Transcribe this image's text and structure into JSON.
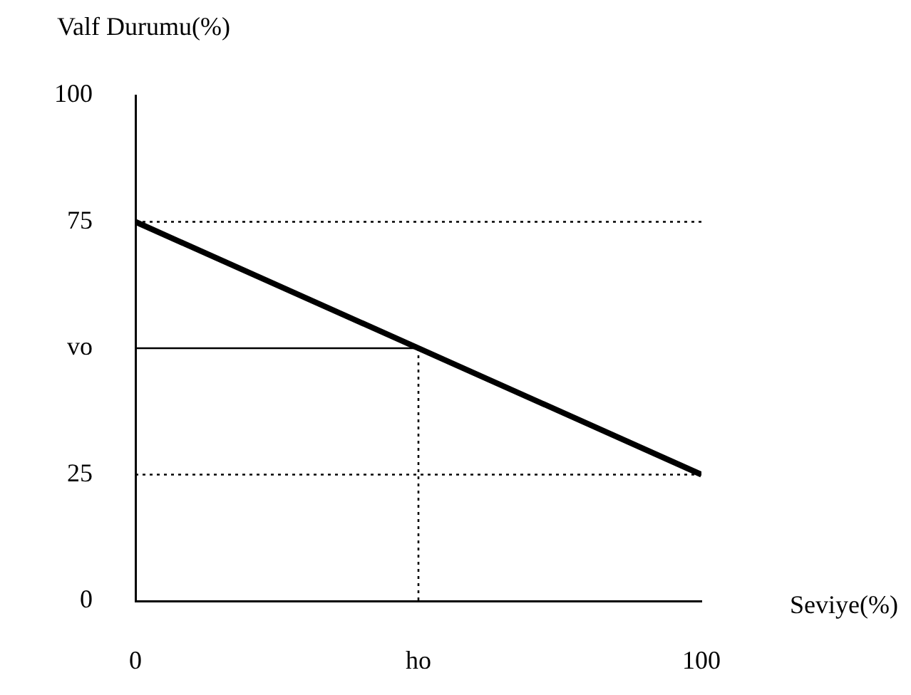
{
  "chart_data": {
    "type": "line",
    "xlabel": "Seviye(%)",
    "ylabel": "Valf Durumu(%)",
    "xlim": [
      0,
      100
    ],
    "ylim": [
      0,
      100
    ],
    "xticks": [
      0,
      {
        "value": 50,
        "label": "ho"
      },
      100
    ],
    "yticks": [
      0,
      25,
      {
        "value": 50,
        "label": "vo"
      },
      75,
      100
    ],
    "grid": false,
    "legend": false,
    "marker": "none",
    "line_style": "solid",
    "series": [
      {
        "color": "#000000",
        "x": [
          0,
          100
        ],
        "values": [
          75,
          25
        ]
      },
      {
        "color": "#000000",
        "x": [
          0,
          50
        ],
        "values": [
          50,
          50
        ],
        "line_style": "solid"
      },
      {
        "color": "#000000",
        "x": [
          50,
          50
        ],
        "values": [
          50,
          0
        ],
        "line_style": "dotted"
      }
    ],
    "ref_lines": [
      {
        "axis": "y",
        "value": 75,
        "line_style": "dotted",
        "color": "#000000"
      },
      {
        "axis": "y",
        "value": 25,
        "line_style": "dotted",
        "color": "#000000"
      }
    ]
  }
}
